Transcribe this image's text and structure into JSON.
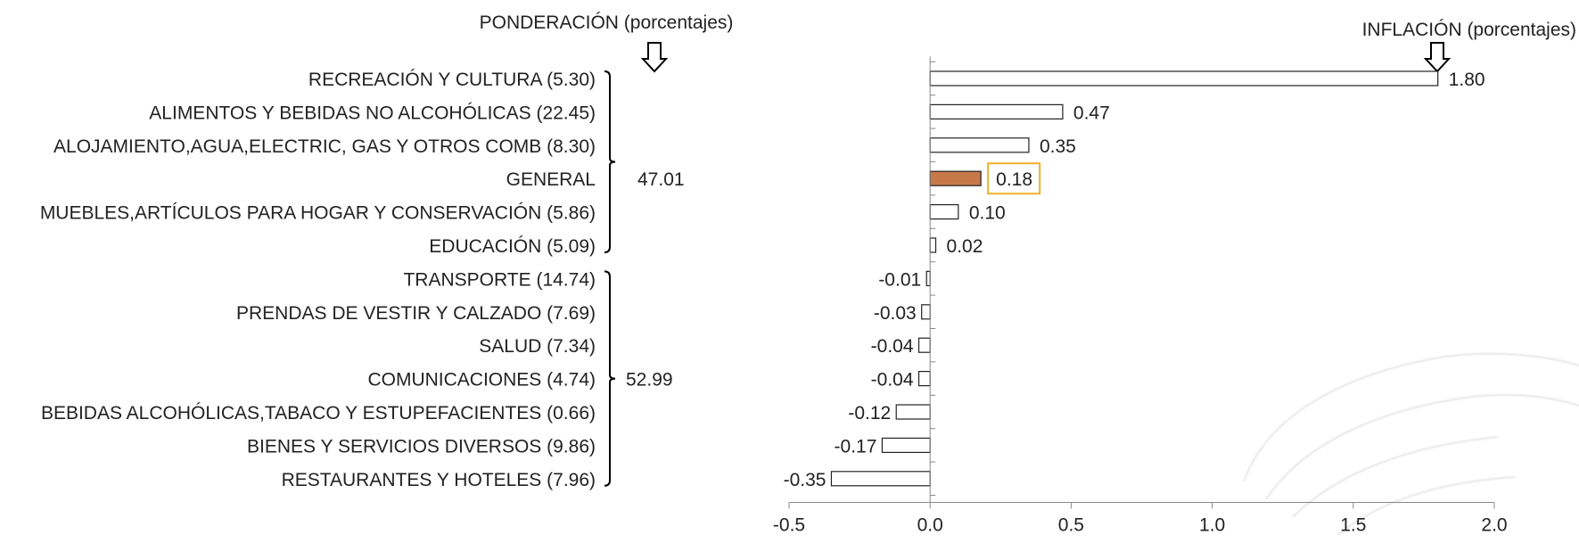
{
  "chart_data": {
    "type": "bar",
    "orientation": "horizontal",
    "left_heading": "PONDERACIÓN (porcentajes)",
    "right_heading": "INFLACIÓN (porcentajes)",
    "categories": [
      "RECREACIÓN Y CULTURA (5.30)",
      "ALIMENTOS Y BEBIDAS NO ALCOHÓLICAS (22.45)",
      "ALOJAMIENTO,AGUA,ELECTRIC, GAS Y OTROS COMB (8.30)",
      "GENERAL",
      "MUEBLES,ARTÍCULOS PARA HOGAR Y CONSERVACIÓN (5.86)",
      "EDUCACIÓN (5.09)",
      "TRANSPORTE (14.74)",
      "PRENDAS DE VESTIR Y CALZADO (7.69)",
      "SALUD (7.34)",
      "COMUNICACIONES (4.74)",
      "BEBIDAS ALCOHÓLICAS,TABACO Y ESTUPEFACIENTES (0.66)",
      "BIENES Y SERVICIOS DIVERSOS (9.86)",
      "RESTAURANTES Y HOTELES (7.96)"
    ],
    "values": [
      1.8,
      0.47,
      0.35,
      0.18,
      0.1,
      0.02,
      -0.01,
      -0.03,
      -0.04,
      -0.04,
      -0.12,
      -0.17,
      -0.35
    ],
    "value_labels": [
      "1.80",
      "0.47",
      "0.35",
      "0.18",
      "0.10",
      "0.02",
      "-0.01",
      "-0.03",
      "-0.04",
      "-0.04",
      "-0.12",
      "-0.17",
      "-0.35"
    ],
    "highlight_category": "GENERAL",
    "highlight_color": "#c8794a",
    "highlight_box_color": "#f2b02a",
    "bar_fill": "#ffffff",
    "bar_stroke": "#222222",
    "xlim": [
      -0.5,
      2.0
    ],
    "x_ticks": [
      -0.5,
      0.0,
      0.5,
      1.0,
      1.5,
      2.0
    ],
    "x_tick_labels": [
      "-0.5",
      "0.0",
      "0.5",
      "1.0",
      "1.5",
      "2.0"
    ],
    "groups": [
      {
        "total": "47.01",
        "from_index": 0,
        "to_index": 5
      },
      {
        "total": "52.99",
        "from_index": 6,
        "to_index": 12
      }
    ],
    "grid": false,
    "legend": "none"
  }
}
